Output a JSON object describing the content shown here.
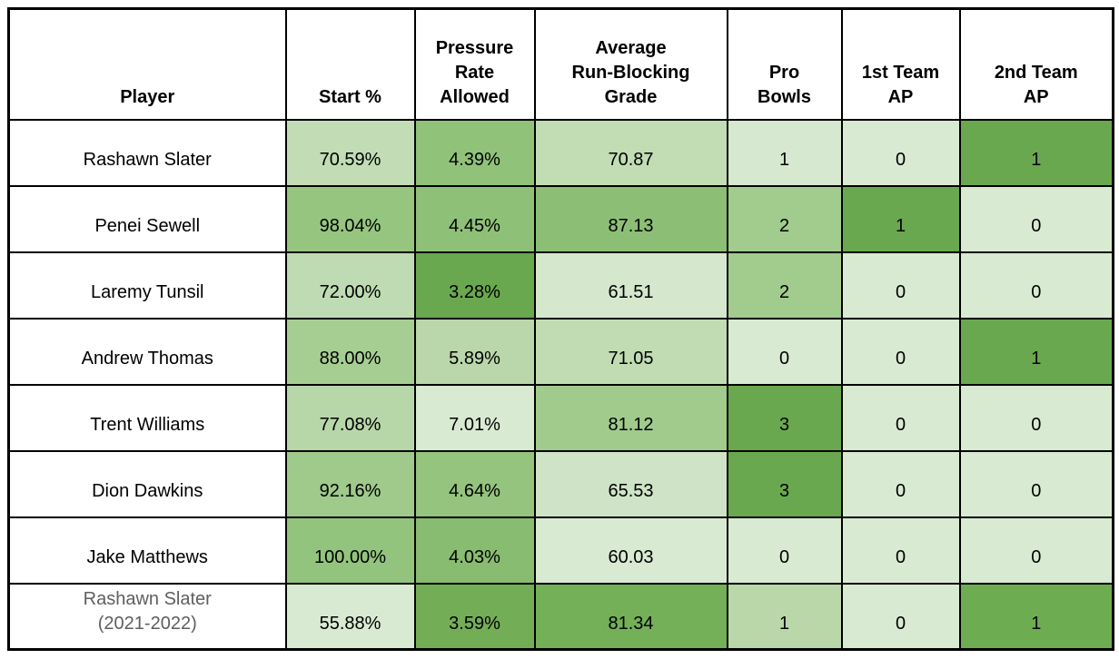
{
  "table": {
    "header": {
      "columns": [
        {
          "id": "player",
          "label": "Player"
        },
        {
          "id": "start_pct",
          "label": "Start %"
        },
        {
          "id": "pressure_rate_allowed",
          "label": "Pressure\nRate\nAllowed"
        },
        {
          "id": "avg_run_blocking_grade",
          "label": "Average\nRun-Blocking\nGrade"
        },
        {
          "id": "pro_bowls",
          "label": "Pro\nBowls"
        },
        {
          "id": "first_team_ap",
          "label": "1st Team\nAP"
        },
        {
          "id": "second_team_ap",
          "label": "2nd Team\nAP"
        }
      ]
    },
    "rows": [
      {
        "cells": [
          {
            "text": "Rashawn Slater",
            "bg": "#ffffff"
          },
          {
            "text": "70.59%",
            "bg": "#c2ddb6"
          },
          {
            "text": "4.39%",
            "bg": "#90c279"
          },
          {
            "text": "70.87",
            "bg": "#c2ddb4"
          },
          {
            "text": "1",
            "bg": "#d6e8cf"
          },
          {
            "text": "0",
            "bg": "#d9ead3"
          },
          {
            "text": "1",
            "bg": "#6aa84f"
          }
        ]
      },
      {
        "cells": [
          {
            "text": "Penei Sewell",
            "bg": "#ffffff"
          },
          {
            "text": "98.04%",
            "bg": "#96c57f"
          },
          {
            "text": "4.45%",
            "bg": "#8ec177"
          },
          {
            "text": "87.13",
            "bg": "#8cbf75"
          },
          {
            "text": "2",
            "bg": "#a2cb8e"
          },
          {
            "text": "1",
            "bg": "#6aa84f"
          },
          {
            "text": "0",
            "bg": "#d9ead3"
          }
        ]
      },
      {
        "cells": [
          {
            "text": "Laremy Tunsil",
            "bg": "#ffffff"
          },
          {
            "text": "72.00%",
            "bg": "#bfdbb3"
          },
          {
            "text": "3.28%",
            "bg": "#6aa84f"
          },
          {
            "text": "61.51",
            "bg": "#d5e8ce"
          },
          {
            "text": "2",
            "bg": "#a2cb8e"
          },
          {
            "text": "0",
            "bg": "#d9ead3"
          },
          {
            "text": "0",
            "bg": "#d9ead3"
          }
        ]
      },
      {
        "cells": [
          {
            "text": "Andrew Thomas",
            "bg": "#ffffff"
          },
          {
            "text": "88.00%",
            "bg": "#a6ce93"
          },
          {
            "text": "5.89%",
            "bg": "#b9d7aa"
          },
          {
            "text": "71.05",
            "bg": "#c1dcb3"
          },
          {
            "text": "0",
            "bg": "#d9ead3"
          },
          {
            "text": "0",
            "bg": "#d9ead3"
          },
          {
            "text": "1",
            "bg": "#6aa84f"
          }
        ]
      },
      {
        "cells": [
          {
            "text": "Trent Williams",
            "bg": "#ffffff"
          },
          {
            "text": "77.08%",
            "bg": "#b8d7a9"
          },
          {
            "text": "7.01%",
            "bg": "#d9ead3"
          },
          {
            "text": "81.12",
            "bg": "#a1cb8d"
          },
          {
            "text": "3",
            "bg": "#6aa84f"
          },
          {
            "text": "0",
            "bg": "#d9ead3"
          },
          {
            "text": "0",
            "bg": "#d9ead3"
          }
        ]
      },
      {
        "cells": [
          {
            "text": "Dion Dawkins",
            "bg": "#ffffff"
          },
          {
            "text": "92.16%",
            "bg": "#9fca8b"
          },
          {
            "text": "4.64%",
            "bg": "#94c47e"
          },
          {
            "text": "65.53",
            "bg": "#cfe4c7"
          },
          {
            "text": "3",
            "bg": "#6aa84f"
          },
          {
            "text": "0",
            "bg": "#d9ead3"
          },
          {
            "text": "0",
            "bg": "#d9ead3"
          }
        ]
      },
      {
        "cells": [
          {
            "text": "Jake Matthews",
            "bg": "#ffffff"
          },
          {
            "text": "100.00%",
            "bg": "#93c47d"
          },
          {
            "text": "4.03%",
            "bg": "#88bc70"
          },
          {
            "text": "60.03",
            "bg": "#d9ead3"
          },
          {
            "text": "0",
            "bg": "#d9ead3"
          },
          {
            "text": "0",
            "bg": "#d9ead3"
          },
          {
            "text": "0",
            "bg": "#d9ead3"
          }
        ]
      },
      {
        "cells": [
          {
            "text": "Rashawn Slater\n(2021-2022)",
            "bg": "#ffffff",
            "text_color": "#5e5e5e"
          },
          {
            "text": "55.88%",
            "bg": "#d9ead3"
          },
          {
            "text": "3.59%",
            "bg": "#73ae57"
          },
          {
            "text": "81.34",
            "bg": "#74b057"
          },
          {
            "text": "1",
            "bg": "#b9d7a8"
          },
          {
            "text": "0",
            "bg": "#d9ead3"
          },
          {
            "text": "1",
            "bg": "#6eac52"
          }
        ]
      }
    ],
    "palette": {
      "lightest_green": "#d9ead3",
      "medium_green": "#93c47d",
      "darkest_green": "#6aa84f",
      "border": "#000000",
      "muted_text": "#5e5e5e"
    }
  },
  "chart_data": {
    "type": "table",
    "columns": [
      "Player",
      "Start %",
      "Pressure Rate Allowed",
      "Average Run-Blocking Grade",
      "Pro Bowls",
      "1st Team AP",
      "2nd Team AP"
    ],
    "rows": [
      [
        "Rashawn Slater",
        "70.59%",
        "4.39%",
        70.87,
        1,
        0,
        1
      ],
      [
        "Penei Sewell",
        "98.04%",
        "4.45%",
        87.13,
        2,
        1,
        0
      ],
      [
        "Laremy Tunsil",
        "72.00%",
        "3.28%",
        61.51,
        2,
        0,
        0
      ],
      [
        "Andrew Thomas",
        "88.00%",
        "5.89%",
        71.05,
        0,
        0,
        1
      ],
      [
        "Trent Williams",
        "77.08%",
        "7.01%",
        81.12,
        3,
        0,
        0
      ],
      [
        "Dion Dawkins",
        "92.16%",
        "4.64%",
        65.53,
        3,
        0,
        0
      ],
      [
        "Jake Matthews",
        "100.00%",
        "4.03%",
        60.03,
        0,
        0,
        0
      ],
      [
        "Rashawn Slater (2021-2022)",
        "55.88%",
        "3.59%",
        81.34,
        1,
        0,
        1
      ]
    ],
    "layout_hints": {
      "heatmap": "per-cell green shading, darker green = stronger value within column",
      "grid": true,
      "header_bold": true
    }
  }
}
